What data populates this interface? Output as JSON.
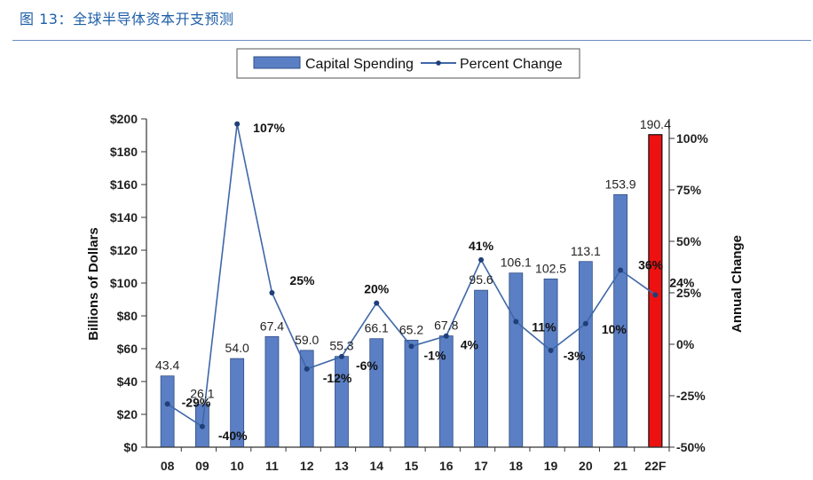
{
  "figure": {
    "caption": "图 13：全球半导体资本开支预测"
  },
  "chart_data": {
    "type": "bar",
    "categories": [
      "08",
      "09",
      "10",
      "11",
      "12",
      "13",
      "14",
      "15",
      "16",
      "17",
      "18",
      "19",
      "20",
      "21",
      "22F"
    ],
    "series": [
      {
        "name": "Capital Spending",
        "type": "bar",
        "axis": "left",
        "values": [
          43.4,
          26.1,
          54.0,
          67.4,
          59.0,
          55.3,
          66.1,
          65.2,
          67.8,
          95.6,
          106.1,
          102.5,
          113.1,
          153.9,
          190.4
        ],
        "value_labels": [
          "43.4",
          "26.1",
          "54.0",
          "67.4",
          "59.0",
          "55.3",
          "66.1",
          "65.2",
          "67.8",
          "95.6",
          "106.1",
          "102.5",
          "113.1",
          "153.9",
          "190.4"
        ],
        "color": "#5b7fc4",
        "highlight_color": "#ee1111",
        "highlight_index": 14
      },
      {
        "name": "Percent Change",
        "type": "line",
        "axis": "right",
        "values": [
          -29,
          -40,
          107,
          25,
          -12,
          -6,
          20,
          -1,
          4,
          41,
          11,
          -3,
          10,
          36,
          24
        ],
        "value_labels": [
          "-29%",
          "-40%",
          "107%",
          "25%",
          "-12%",
          "-6%",
          "20%",
          "-1%",
          "4%",
          "41%",
          "11%",
          "-3%",
          "10%",
          "36%",
          "24%"
        ],
        "color": "#3f67a8"
      }
    ],
    "ylabel": "Billions of Dollars",
    "ylim": [
      0,
      200
    ],
    "yticks": [
      "$0",
      "$20",
      "$40",
      "$60",
      "$80",
      "$100",
      "$120",
      "$140",
      "$160",
      "$180",
      "$200"
    ],
    "y2label": "Annual Change",
    "y2lim": [
      -50,
      110
    ],
    "y2ticks": [
      "-50%",
      "-25%",
      "0%",
      "25%",
      "50%",
      "75%",
      "100%"
    ],
    "grid": false,
    "legend": "top-center"
  }
}
